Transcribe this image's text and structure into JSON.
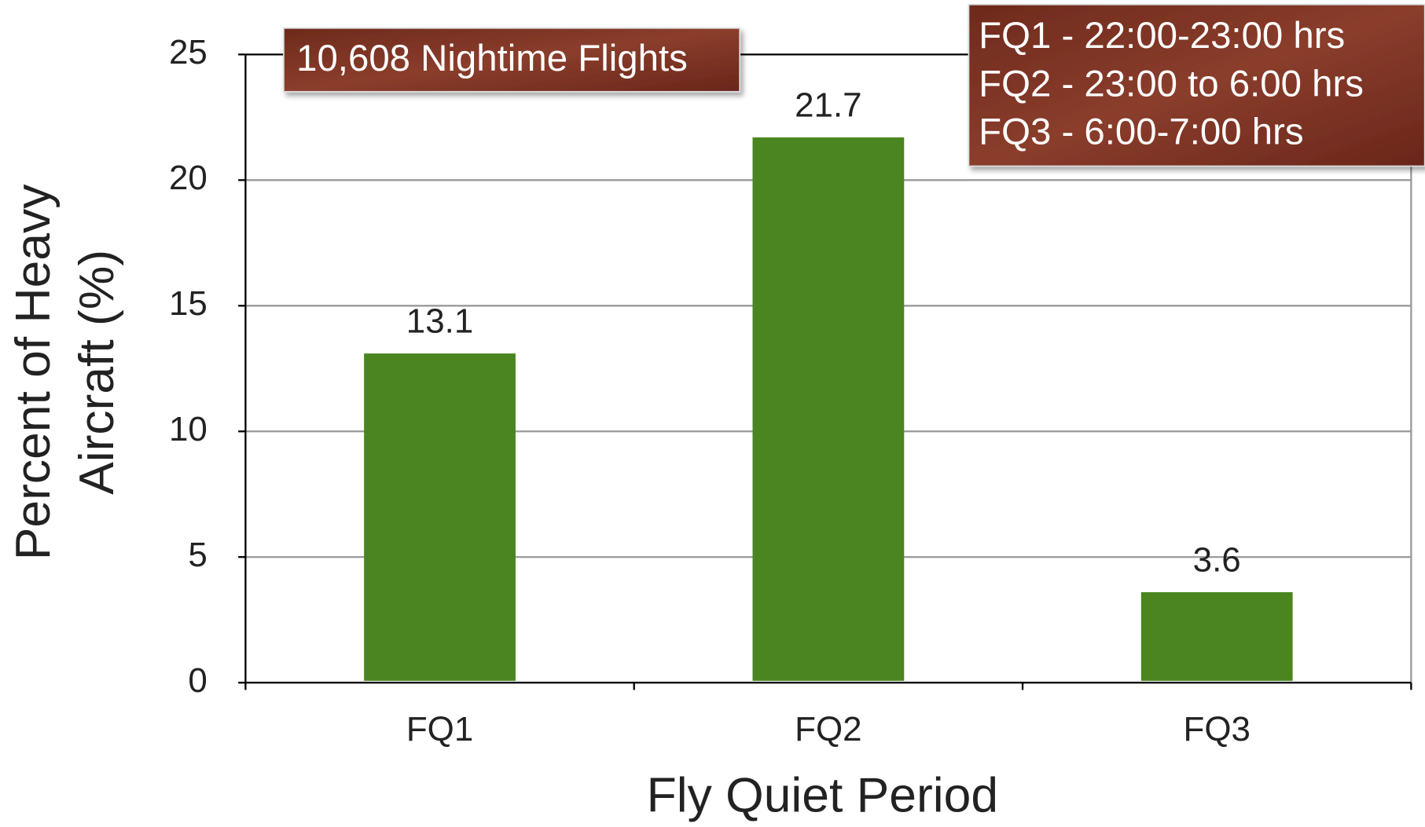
{
  "chart_data": {
    "type": "bar",
    "xlabel": "Fly Quiet Period",
    "ylabel": [
      "Percent of Heavy",
      "Aircraft (%)"
    ],
    "categories": [
      "FQ1",
      "FQ2",
      "FQ3"
    ],
    "values": [
      13.1,
      21.7,
      3.6
    ],
    "color": "#4a8520",
    "ylim": [
      0,
      25
    ],
    "yticks": [
      0,
      5,
      10,
      15,
      20,
      25
    ],
    "grid": true,
    "annotations": [
      {
        "lines": [
          "10,608 Nightime Flights"
        ]
      },
      {
        "lines": [
          "FQ1 - 22:00-23:00 hrs",
          "FQ2 - 23:00 to 6:00 hrs",
          "FQ3 - 6:00-7:00 hrs"
        ]
      }
    ]
  }
}
